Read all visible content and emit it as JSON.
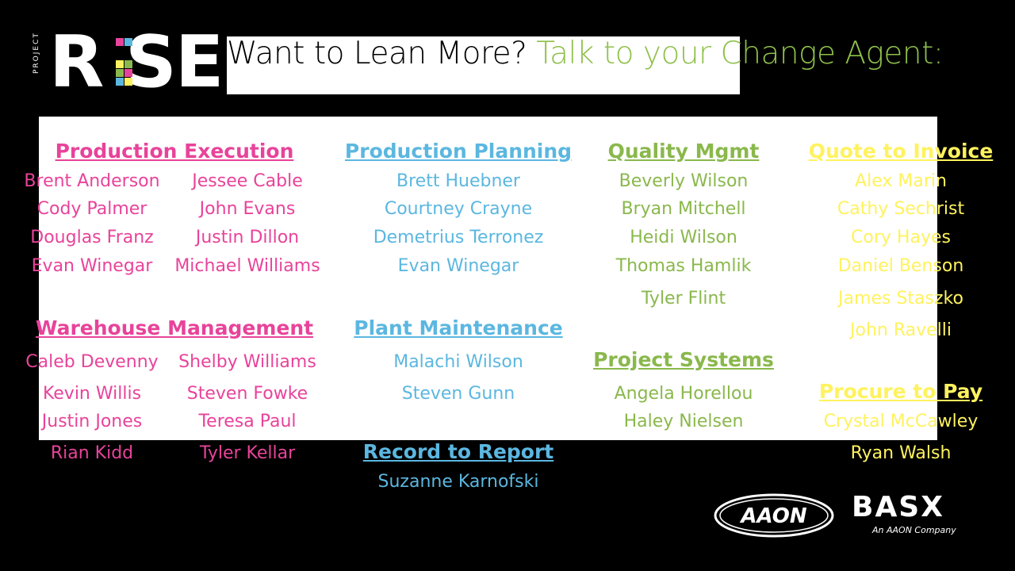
{
  "logo": {
    "small_text": "PROJECT",
    "word": "RISE"
  },
  "title": {
    "part1": "Want to Lean More?",
    "part2": "Talk to your Change Agent:"
  },
  "colors": {
    "pink": "#e8439a",
    "blue": "#5bb7e0",
    "green": "#8ab84c",
    "yellow": "#fff25e",
    "title_green": "#8fc04a"
  },
  "sections": {
    "production_execution": {
      "heading": "Production Execution",
      "col1": [
        "Brent Anderson",
        "Cody Palmer",
        "Douglas Franz",
        "Evan Winegar"
      ],
      "col2": [
        "Jessee Cable",
        "John Evans",
        "Justin Dillon",
        "Michael Williams"
      ]
    },
    "warehouse_management": {
      "heading": "Warehouse Management",
      "col1": [
        "Caleb Devenny",
        "Kevin Willis",
        "Justin Jones",
        "Rian Kidd"
      ],
      "col2": [
        "Shelby Williams",
        "Steven Fowke",
        "Teresa Paul",
        "Tyler Kellar"
      ]
    },
    "production_planning": {
      "heading": "Production Planning",
      "names": [
        "Brett Huebner",
        "Courtney Crayne",
        "Demetrius Terronez",
        "Evan Winegar"
      ]
    },
    "plant_maintenance": {
      "heading": "Plant Maintenance",
      "names": [
        "Malachi Wilson",
        "Steven Gunn"
      ]
    },
    "record_to_report": {
      "heading": "Record to Report",
      "names": [
        "Suzanne Karnofski"
      ]
    },
    "quality_mgmt": {
      "heading": "Quality Mgmt",
      "names": [
        "Beverly Wilson",
        "Bryan Mitchell",
        "Heidi Wilson",
        "Thomas Hamlik",
        "Tyler Flint"
      ]
    },
    "project_systems": {
      "heading": "Project Systems",
      "names": [
        "Angela Horellou",
        "Haley Nielsen"
      ]
    },
    "quote_to_invoice": {
      "heading": "Quote to Invoice",
      "names": [
        "Alex Marin",
        "Cathy Sechrist",
        "Cory Hayes",
        "Daniel Benson",
        "James Staszko",
        "John Ravelli"
      ]
    },
    "procure_to_pay": {
      "heading": "Procure to Pay",
      "names": [
        "Crystal McCawley",
        "Ryan Walsh"
      ]
    }
  },
  "footer": {
    "aaon": "AAON",
    "basx": "BASX",
    "basx_tagline": "An AAON Company"
  }
}
